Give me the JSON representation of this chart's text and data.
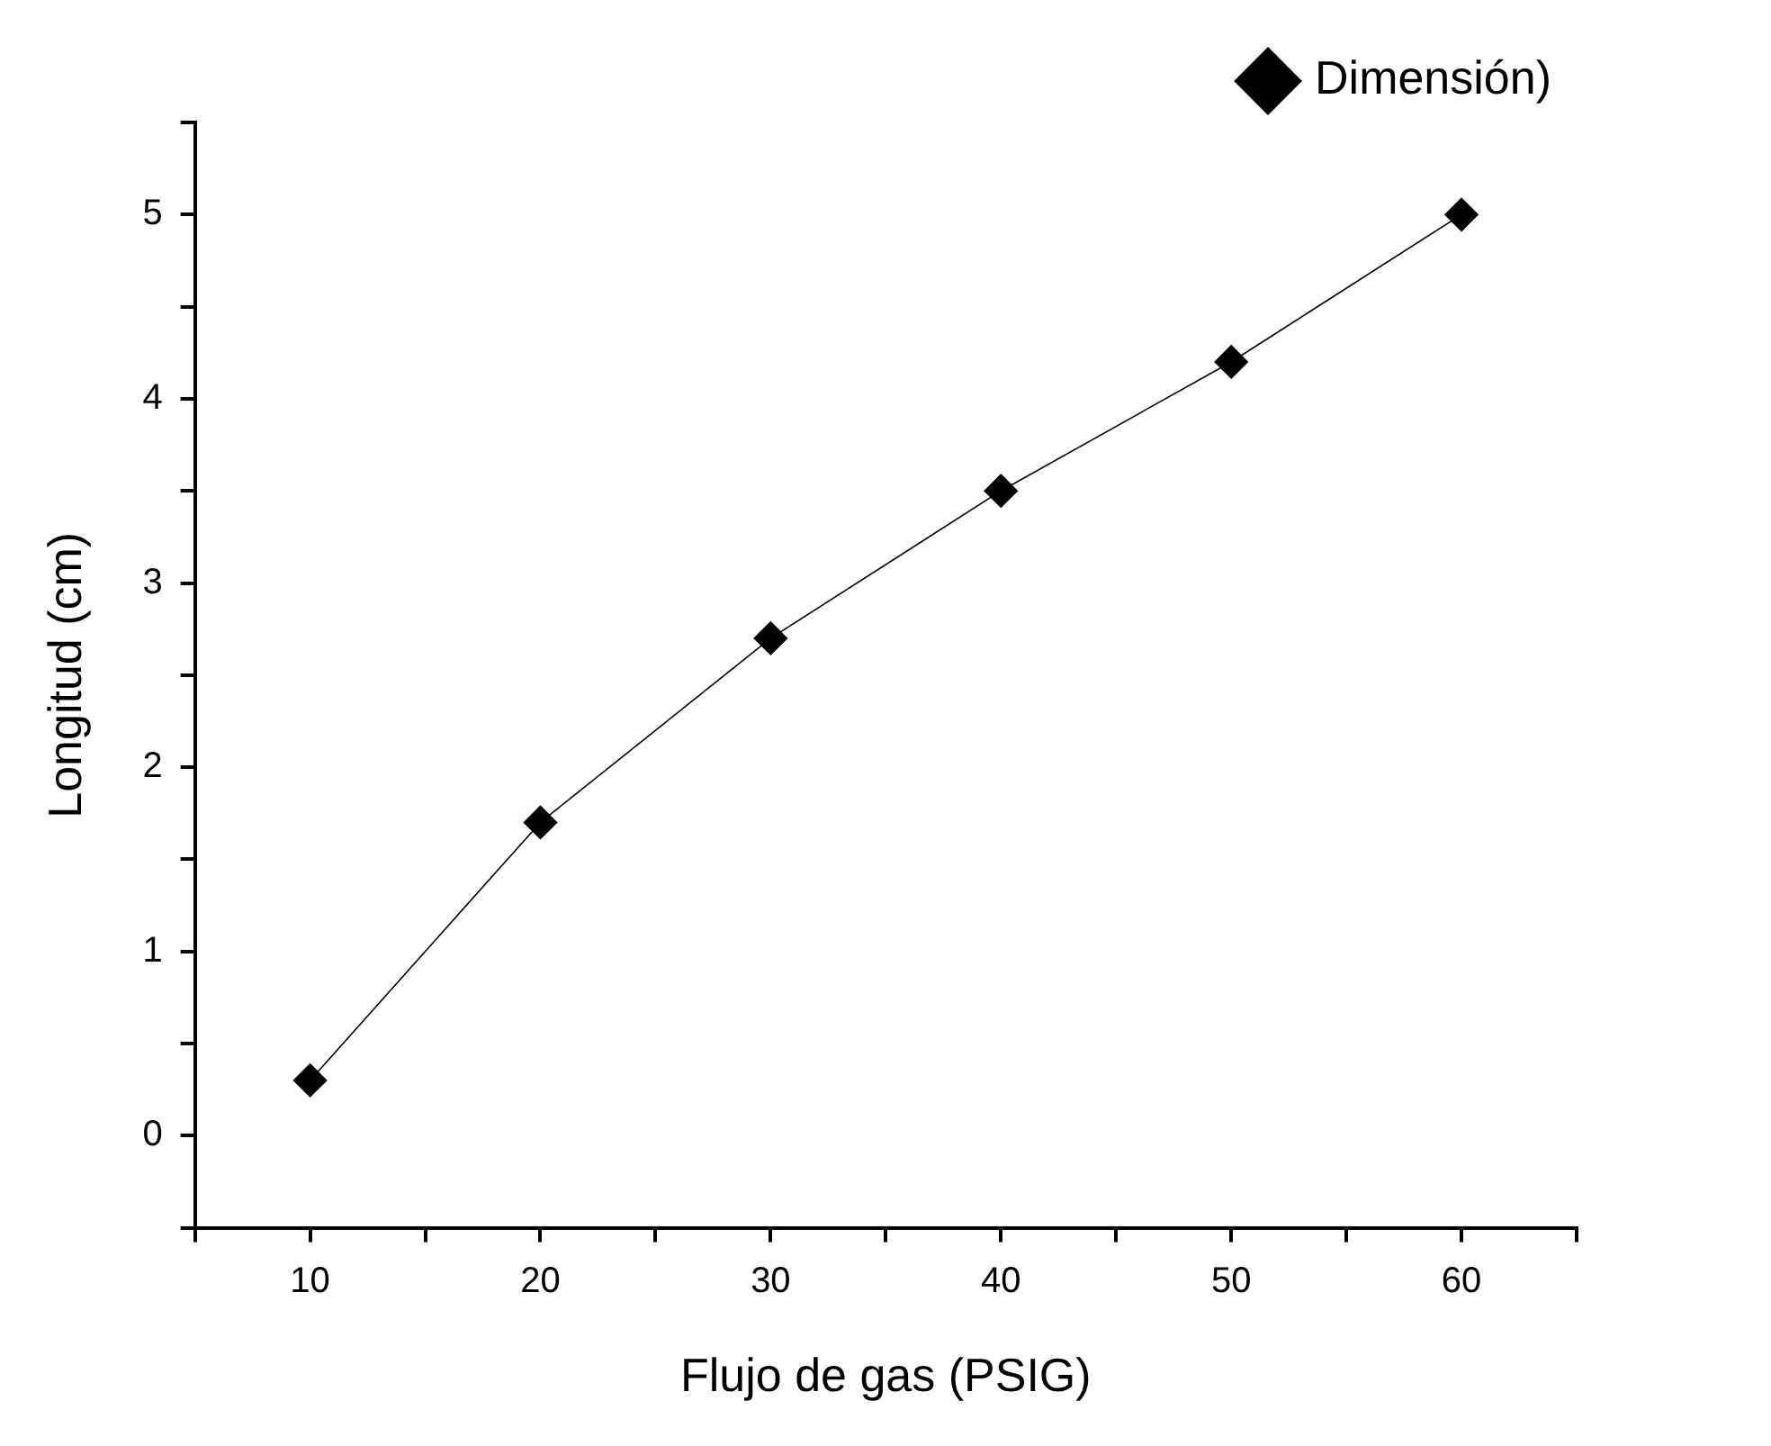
{
  "chart_data": {
    "type": "line",
    "xlabel": "Flujo de gas (PSIG)",
    "ylabel": "Longitud (cm)",
    "x": [
      10,
      20,
      30,
      40,
      50,
      60
    ],
    "series": [
      {
        "name": "Dimensión)",
        "color": "#000000",
        "values": [
          0.3,
          1.7,
          2.7,
          3.5,
          4.2,
          5.0
        ]
      }
    ],
    "xlim": [
      5,
      65
    ],
    "ylim": [
      -0.5,
      5.5
    ],
    "xticks": [
      {
        "value": 5,
        "label": null
      },
      10,
      {
        "value": 15,
        "label": null
      },
      20,
      {
        "value": 25,
        "label": null
      },
      30,
      {
        "value": 35,
        "label": null
      },
      40,
      {
        "value": 45,
        "label": null
      },
      50,
      {
        "value": 55,
        "label": null
      },
      60,
      {
        "value": 65,
        "label": null
      }
    ],
    "yticks": [
      {
        "value": -0.5,
        "label": null
      },
      0,
      {
        "value": 0.5,
        "label": null
      },
      1,
      {
        "value": 1.5,
        "label": null
      },
      2,
      {
        "value": 2.5,
        "label": null
      },
      3,
      {
        "value": 3.5,
        "label": null
      },
      4,
      {
        "value": 4.5,
        "label": null
      },
      5,
      {
        "value": 5.5,
        "label": null
      }
    ],
    "grid": false,
    "legend": "top right",
    "marker": "diamond",
    "line_style": "solid"
  }
}
